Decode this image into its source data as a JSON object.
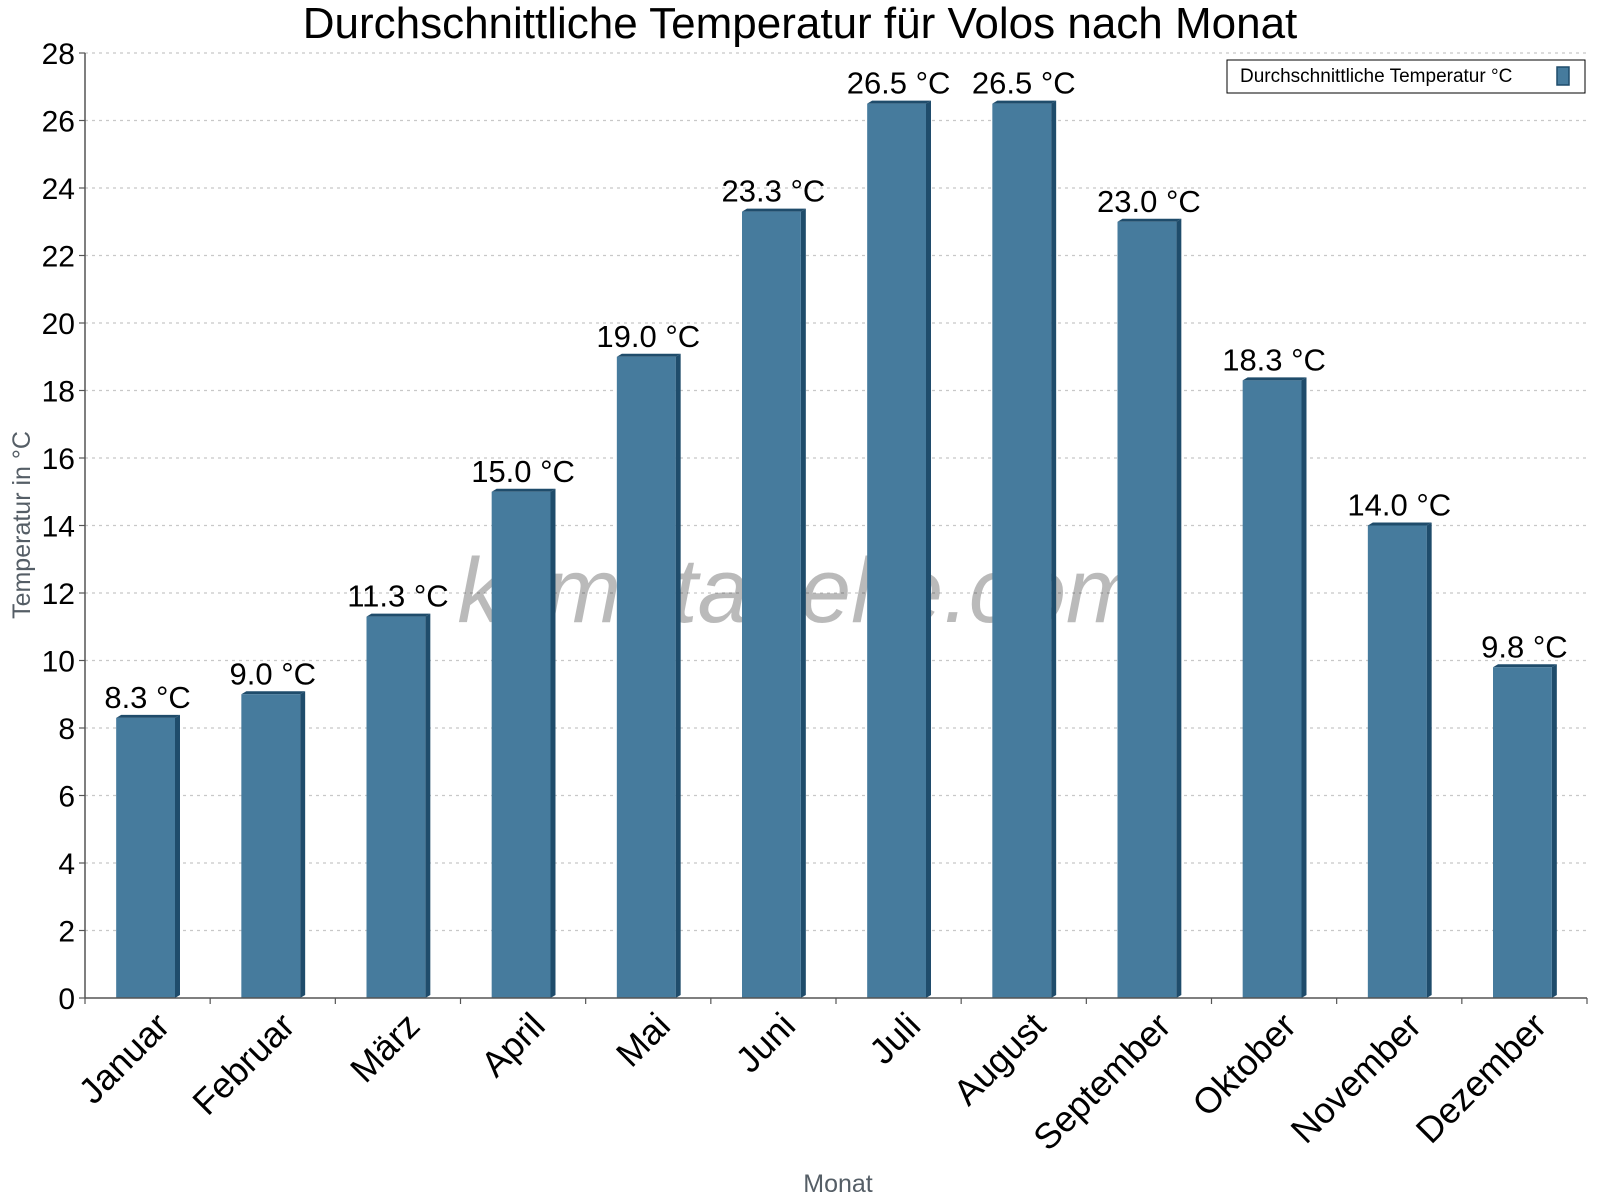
{
  "chart_data": {
    "type": "bar",
    "title": "Durchschnittliche Temperatur für Volos nach Monat",
    "xlabel": "Monat",
    "ylabel": "Temperatur in °C",
    "categories": [
      "Januar",
      "Februar",
      "März",
      "April",
      "Mai",
      "Juni",
      "Juli",
      "August",
      "September",
      "Oktober",
      "November",
      "Dezember"
    ],
    "series": [
      {
        "name": "Durchschnittliche Temperatur °C",
        "values": [
          8.3,
          9.0,
          11.3,
          15.0,
          19.0,
          23.3,
          26.5,
          26.5,
          23.0,
          18.3,
          14.0,
          9.8
        ],
        "labels": [
          "8.3 °C",
          "9.0 °C",
          "11.3 °C",
          "15.0 °C",
          "19.0 °C",
          "23.3 °C",
          "26.5 °C",
          "26.5 °C",
          "23.0 °C",
          "18.3 °C",
          "14.0 °C",
          "9.8 °C"
        ],
        "color": "#467b9d",
        "shade_color": "#1f4c6b"
      }
    ],
    "ylim": [
      0,
      28
    ],
    "yticks": [
      "0",
      "2",
      "4",
      "6",
      "8",
      "10",
      "12",
      "14",
      "16",
      "18",
      "20",
      "22",
      "24",
      "26",
      "28"
    ],
    "grid": true,
    "legend_position": "top-right",
    "watermark": "klimatabelle.com"
  }
}
